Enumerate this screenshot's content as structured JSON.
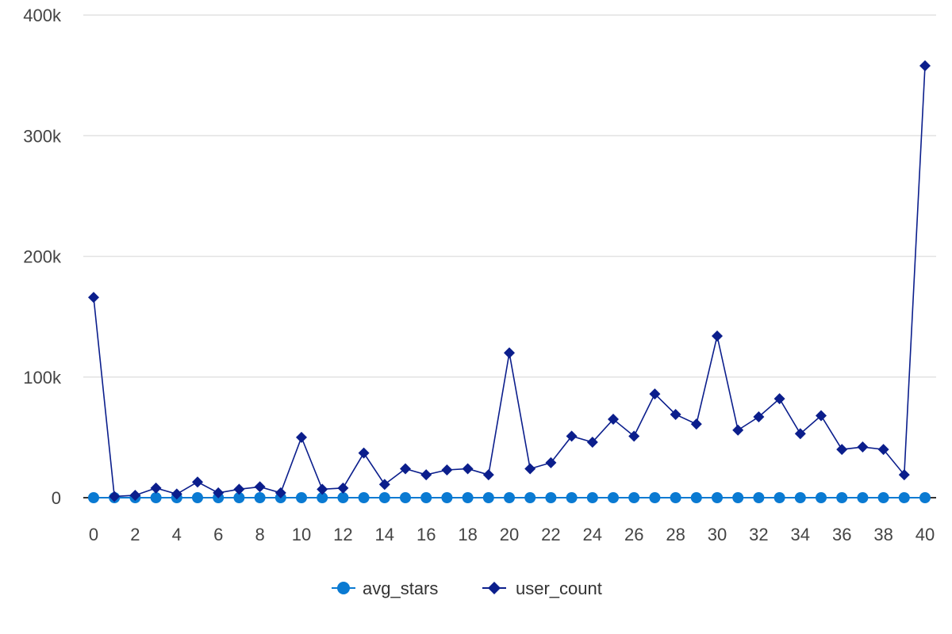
{
  "chart_data": {
    "type": "line",
    "title": "",
    "xlabel": "",
    "ylabel": "",
    "x": [
      0,
      1,
      2,
      3,
      4,
      5,
      6,
      7,
      8,
      9,
      10,
      11,
      12,
      13,
      14,
      15,
      16,
      17,
      18,
      19,
      20,
      21,
      22,
      23,
      24,
      25,
      26,
      27,
      28,
      29,
      30,
      31,
      32,
      33,
      34,
      35,
      36,
      37,
      38,
      39,
      40
    ],
    "x_ticks": [
      "0",
      "2",
      "4",
      "6",
      "8",
      "10",
      "12",
      "14",
      "16",
      "18",
      "20",
      "22",
      "24",
      "26",
      "28",
      "30",
      "32",
      "34",
      "36",
      "38",
      "40"
    ],
    "y_ticks": [
      "0",
      "100k",
      "200k",
      "300k",
      "400k"
    ],
    "ylim": [
      0,
      400000
    ],
    "xlim": [
      0,
      40
    ],
    "grid": "horizontal",
    "legend_position": "bottom",
    "series": [
      {
        "name": "avg_stars",
        "marker": "circle",
        "color": "#0a7ad2",
        "values": [
          3,
          3,
          3,
          3,
          3,
          3,
          3,
          3,
          3,
          3,
          3,
          3,
          3,
          3,
          3,
          3,
          3,
          3,
          3,
          3,
          3,
          3,
          3,
          3,
          3,
          3,
          3,
          3,
          3,
          3,
          3,
          3,
          3,
          3,
          3,
          3,
          3,
          3,
          3,
          3,
          3
        ]
      },
      {
        "name": "user_count",
        "marker": "diamond",
        "color": "#0b1e8c",
        "values": [
          166000,
          1000,
          2000,
          8000,
          3000,
          13000,
          4000,
          7000,
          9000,
          4000,
          50000,
          7000,
          8000,
          37000,
          11000,
          24000,
          19000,
          23000,
          24000,
          19000,
          120000,
          24000,
          29000,
          51000,
          46000,
          65000,
          51000,
          86000,
          69000,
          61000,
          134000,
          56000,
          67000,
          82000,
          53000,
          68000,
          40000,
          42000,
          40000,
          19000,
          358000
        ]
      }
    ]
  }
}
